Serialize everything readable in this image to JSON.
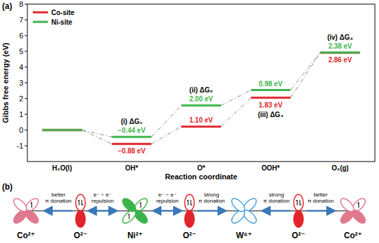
{
  "chart_data": {
    "type": "line",
    "panel_label": "(a)",
    "x_label": "Reaction coordinate",
    "y_label": "Gibbs free energy (eV)",
    "categories": [
      "H₂O(l)",
      "OH*",
      "O*",
      "OOH*",
      "O₂(g)"
    ],
    "series": [
      {
        "name": "Co-site",
        "color": "#e3242b",
        "values": [
          0,
          -0.88,
          0.22,
          2.05,
          4.91
        ],
        "step_labels": [
          "−0.88 eV",
          "1.10 eV",
          "1.83 eV",
          "2.86 eV"
        ]
      },
      {
        "name": "Ni-site",
        "color": "#3cb44b",
        "values": [
          0,
          -0.44,
          1.56,
          2.54,
          4.92
        ],
        "step_labels": [
          "−0.44 eV",
          "2.00 eV",
          "0.98 eV",
          "2.38 eV"
        ]
      }
    ],
    "annotations": [
      "(i) ΔG₁",
      "(ii) ΔG₂",
      "(iii) ΔG₃",
      "(iv) ΔG₄"
    ],
    "ylim": [
      -2,
      8
    ],
    "yticks": [
      -1,
      0,
      1,
      2,
      3,
      4,
      5,
      6,
      7,
      8
    ],
    "legend": "upper left",
    "line_style": "dashdot"
  },
  "diagram": {
    "panel_label": "(b)",
    "ions": [
      {
        "label": "Co²⁺",
        "type": "d",
        "color": "#e0788f",
        "marker": "half-filled"
      },
      {
        "label": "O²⁻",
        "type": "p",
        "color": "#e3242b",
        "marker": "pair"
      },
      {
        "label": "Ni²⁺",
        "type": "d",
        "color": "#3cb44b",
        "marker": "filled"
      },
      {
        "label": "O²⁻",
        "type": "p",
        "color": "#e3242b",
        "marker": "pair"
      },
      {
        "label": "W⁶⁺",
        "type": "d",
        "color": "#4aa3df",
        "marker": "empty"
      },
      {
        "label": "O²⁻",
        "type": "p",
        "color": "#e3242b",
        "marker": "pair"
      },
      {
        "label": "Co²⁺",
        "type": "d",
        "color": "#e0788f",
        "marker": "half-filled"
      }
    ],
    "arrows": [
      {
        "from": 1,
        "to": 0,
        "type": "donation",
        "label": [
          "better",
          "π donation"
        ]
      },
      {
        "from": 1,
        "to": 2,
        "type": "repulsion",
        "label": [
          "e⁻ − e⁻",
          "repulsion"
        ]
      },
      {
        "from": 3,
        "to": 2,
        "type": "repulsion",
        "label": [
          "e⁻ − e⁻",
          "repulsion"
        ]
      },
      {
        "from": 3,
        "to": 4,
        "type": "donation",
        "label": [
          "strong",
          "π donation"
        ]
      },
      {
        "from": 5,
        "to": 4,
        "type": "donation",
        "label": [
          "strong",
          "π donation"
        ]
      },
      {
        "from": 5,
        "to": 6,
        "type": "donation",
        "label": [
          "better",
          "π donation"
        ]
      }
    ]
  }
}
